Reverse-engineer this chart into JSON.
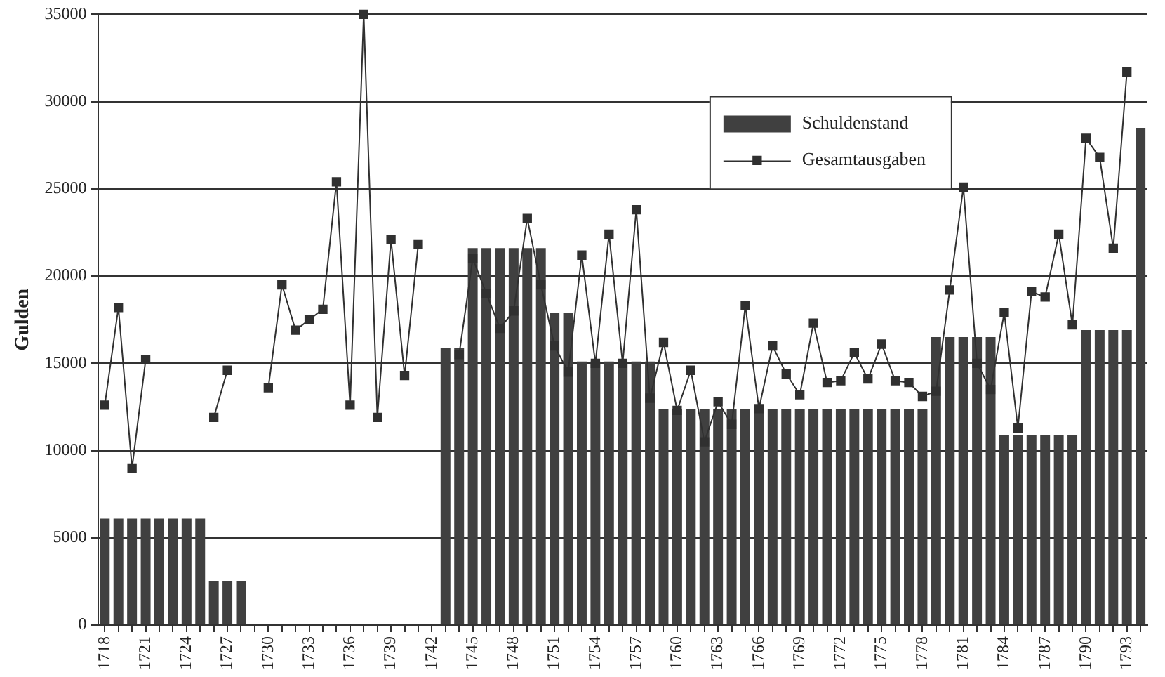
{
  "chart_data": {
    "type": "bar",
    "ylabel": "Gulden",
    "categories": [
      "1718",
      null,
      null,
      "1721",
      null,
      null,
      "1724",
      null,
      null,
      "1727",
      null,
      null,
      "1730",
      null,
      null,
      "1733",
      null,
      null,
      "1736",
      null,
      null,
      "1739",
      null,
      null,
      "1742",
      null,
      null,
      "1745",
      null,
      null,
      "1748",
      null,
      null,
      "1751",
      null,
      null,
      "1754",
      null,
      null,
      "1757",
      null,
      null,
      "1760",
      null,
      null,
      "1763",
      null,
      null,
      "1766",
      null,
      null,
      "1769",
      null,
      null,
      "1772",
      null,
      null,
      "1775",
      null,
      null,
      "1778",
      null,
      null,
      "1781",
      null,
      null,
      "1784",
      null,
      null,
      "1787",
      null,
      null,
      "1790",
      null,
      null,
      "1793",
      null
    ],
    "series": [
      {
        "name": "Schuldenstand",
        "color": "#404040",
        "values": [
          6100,
          6100,
          6100,
          6100,
          6100,
          6100,
          6100,
          6100,
          2500,
          2500,
          2500,
          0,
          0,
          0,
          0,
          0,
          0,
          0,
          0,
          0,
          0,
          0,
          0,
          0,
          0,
          15900,
          15900,
          21600,
          21600,
          21600,
          21600,
          21600,
          21600,
          17900,
          17900,
          15100,
          15100,
          15100,
          15100,
          15100,
          15100,
          12400,
          12400,
          12400,
          12400,
          12400,
          12400,
          12400,
          12400,
          12400,
          12400,
          12400,
          12400,
          12400,
          12400,
          12400,
          12400,
          12400,
          12400,
          12400,
          12400,
          16500,
          16500,
          16500,
          16500,
          16500,
          10900,
          10900,
          10900,
          10900,
          10900,
          10900,
          16900,
          16900,
          16900,
          16900,
          28500
        ]
      },
      {
        "name": "Gesamtausgaben",
        "type": "line",
        "color": "#303030",
        "marker": "square",
        "line_style": "solid",
        "values": [
          12600,
          18200,
          9000,
          15200,
          null,
          null,
          null,
          null,
          11900,
          14600,
          null,
          null,
          13600,
          19500,
          16900,
          17500,
          18100,
          25400,
          12600,
          35000,
          11900,
          22100,
          14300,
          21800,
          null,
          null,
          15500,
          21000,
          19000,
          17000,
          18000,
          23300,
          19500,
          16000,
          14500,
          21200,
          15000,
          22400,
          15000,
          23800,
          13000,
          16200,
          12300,
          14600,
          10500,
          12800,
          11500,
          18300,
          12400,
          16000,
          14400,
          13200,
          17300,
          13900,
          14000,
          15600,
          14100,
          16100,
          14000,
          13900,
          13100,
          13400,
          19200,
          25100,
          15000,
          13500,
          17900,
          11300,
          19100,
          18800,
          22400,
          17200,
          27900,
          26800,
          21600,
          31700,
          null
        ]
      }
    ],
    "ylim": [
      0,
      35000
    ],
    "yticks": [
      0,
      5000,
      10000,
      15000,
      20000,
      25000,
      30000,
      35000
    ],
    "grid": "y",
    "legend": "top right"
  }
}
